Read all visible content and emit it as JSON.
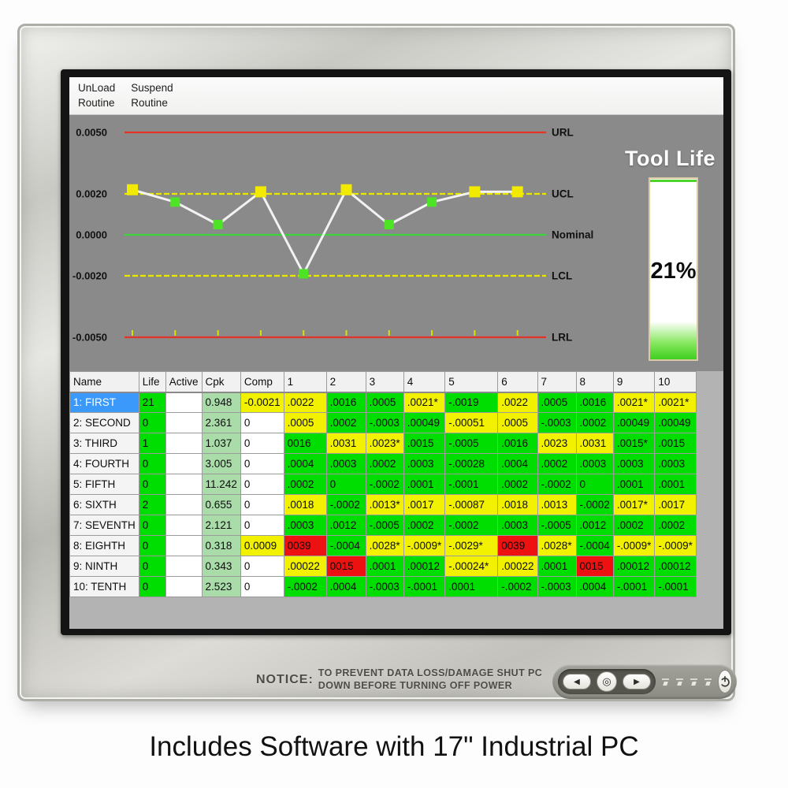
{
  "menu": {
    "items": [
      {
        "id": "unload-routine",
        "label": "UnLoad\nRoutine"
      },
      {
        "id": "suspend-routine",
        "label": "Suspend\nRoutine"
      }
    ]
  },
  "chart_data": {
    "type": "line",
    "title": "",
    "xlabel": "",
    "ylabel": "",
    "x": [
      1,
      2,
      3,
      4,
      5,
      6,
      7,
      8,
      9,
      10
    ],
    "series": [
      {
        "name": "1: FIRST",
        "values": [
          0.0022,
          0.0016,
          0.0005,
          0.0021,
          -0.0019,
          0.0022,
          0.0005,
          0.0016,
          0.0021,
          0.0021
        ],
        "marker": "square",
        "marker_colors": [
          "yellow",
          "green",
          "green",
          "yellow",
          "green",
          "yellow",
          "green",
          "green",
          "yellow",
          "yellow"
        ],
        "line_color": "#f2f2f2"
      }
    ],
    "control_lines": [
      {
        "label": "URL",
        "value": 0.005,
        "color": "#e2352a",
        "style": "solid"
      },
      {
        "label": "UCL",
        "value": 0.002,
        "color": "#e8e800",
        "style": "dashed"
      },
      {
        "label": "Nominal",
        "value": 0.0,
        "color": "#3bd43b",
        "style": "solid"
      },
      {
        "label": "LCL",
        "value": -0.002,
        "color": "#e8e800",
        "style": "dashed"
      },
      {
        "label": "LRL",
        "value": -0.005,
        "color": "#e2352a",
        "style": "solid"
      }
    ],
    "y_ticks": [
      {
        "label": "0.0050",
        "value": 0.005
      },
      {
        "label": "0.0020",
        "value": 0.002
      },
      {
        "label": "0.0000",
        "value": 0.0
      },
      {
        "label": "-0.0020",
        "value": -0.002
      },
      {
        "label": "-0.0050",
        "value": -0.005
      }
    ],
    "ylim": [
      -0.0063,
      0.0059
    ],
    "grid": false,
    "background": "#8a8a8a",
    "legend_position": "right"
  },
  "tool_life": {
    "title": "Tool Life",
    "percent": 21,
    "percent_label": "21%"
  },
  "table": {
    "headers": [
      "Name",
      "Life",
      "Active",
      "Cpk",
      "Comp",
      "1",
      "2",
      "3",
      "4",
      "5",
      "6",
      "7",
      "8",
      "9",
      "10"
    ],
    "rows": [
      {
        "name": "1: FIRST",
        "selected": true,
        "life": "21",
        "active": "",
        "cpk": "0.948",
        "comp": [
          "-0.0021",
          "y"
        ],
        "values": [
          [
            ".0022",
            "y"
          ],
          [
            ".0016",
            "g"
          ],
          [
            ".0005",
            "g"
          ],
          [
            ".0021*",
            "y"
          ],
          [
            "-.0019",
            "g"
          ],
          [
            ".0022",
            "y"
          ],
          [
            ".0005",
            "g"
          ],
          [
            ".0016",
            "g"
          ],
          [
            ".0021*",
            "y"
          ],
          [
            ".0021*",
            "y"
          ]
        ]
      },
      {
        "name": "2: SECOND",
        "selected": false,
        "life": "0",
        "active": "",
        "cpk": "2.361",
        "comp": [
          "0",
          "w"
        ],
        "values": [
          [
            ".0005",
            "y"
          ],
          [
            ".0002",
            "g"
          ],
          [
            "-.0003",
            "g"
          ],
          [
            ".00049",
            "g"
          ],
          [
            "-.00051",
            "y"
          ],
          [
            ".0005",
            "y"
          ],
          [
            "-.0003",
            "g"
          ],
          [
            ".0002",
            "g"
          ],
          [
            ".00049",
            "g"
          ],
          [
            ".00049",
            "g"
          ]
        ]
      },
      {
        "name": "3: THIRD",
        "selected": false,
        "life": "1",
        "active": "",
        "cpk": "1.037",
        "comp": [
          "0",
          "w"
        ],
        "values": [
          [
            "0016",
            "g"
          ],
          [
            ".0031",
            "y"
          ],
          [
            ".0023*",
            "y"
          ],
          [
            ".0015",
            "g"
          ],
          [
            "-.0005",
            "g"
          ],
          [
            ".0016",
            "g"
          ],
          [
            ".0023",
            "y"
          ],
          [
            ".0031",
            "y"
          ],
          [
            ".0015*",
            "g"
          ],
          [
            ".0015",
            "g"
          ]
        ]
      },
      {
        "name": "4: FOURTH",
        "selected": false,
        "life": "0",
        "active": "",
        "cpk": "3.005",
        "comp": [
          "0",
          "w"
        ],
        "values": [
          [
            ".0004",
            "g"
          ],
          [
            ".0003",
            "g"
          ],
          [
            ".0002",
            "g"
          ],
          [
            ".0003",
            "g"
          ],
          [
            "-.00028",
            "g"
          ],
          [
            ".0004",
            "g"
          ],
          [
            ".0002",
            "g"
          ],
          [
            ".0003",
            "g"
          ],
          [
            ".0003",
            "g"
          ],
          [
            ".0003",
            "g"
          ]
        ]
      },
      {
        "name": "5: FIFTH",
        "selected": false,
        "life": "0",
        "active": "",
        "cpk": "11.242",
        "comp": [
          "0",
          "w"
        ],
        "values": [
          [
            ".0002",
            "g"
          ],
          [
            "0",
            "g"
          ],
          [
            "-.0002",
            "g"
          ],
          [
            ".0001",
            "g"
          ],
          [
            "-.0001",
            "g"
          ],
          [
            ".0002",
            "g"
          ],
          [
            "-.0002",
            "g"
          ],
          [
            "0",
            "g"
          ],
          [
            ".0001",
            "g"
          ],
          [
            ".0001",
            "g"
          ]
        ]
      },
      {
        "name": "6: SIXTH",
        "selected": false,
        "life": "2",
        "active": "",
        "cpk": "0.655",
        "comp": [
          "0",
          "w"
        ],
        "values": [
          [
            ".0018",
            "y"
          ],
          [
            "-.0002",
            "g"
          ],
          [
            ".0013*",
            "y"
          ],
          [
            ".0017",
            "y"
          ],
          [
            "-.00087",
            "y"
          ],
          [
            ".0018",
            "y"
          ],
          [
            ".0013",
            "y"
          ],
          [
            "-.0002",
            "g"
          ],
          [
            ".0017*",
            "y"
          ],
          [
            ".0017",
            "y"
          ]
        ]
      },
      {
        "name": "7: SEVENTH",
        "selected": false,
        "life": "0",
        "active": "",
        "cpk": "2.121",
        "comp": [
          "0",
          "w"
        ],
        "values": [
          [
            ".0003",
            "g"
          ],
          [
            ".0012",
            "g"
          ],
          [
            "-.0005",
            "g"
          ],
          [
            ".0002",
            "g"
          ],
          [
            "-.0002",
            "g"
          ],
          [
            ".0003",
            "g"
          ],
          [
            "-.0005",
            "g"
          ],
          [
            ".0012",
            "g"
          ],
          [
            ".0002",
            "g"
          ],
          [
            ".0002",
            "g"
          ]
        ]
      },
      {
        "name": "8: EIGHTH",
        "selected": false,
        "life": "0",
        "active": "",
        "cpk": "0.318",
        "comp": [
          "0.0009",
          "y"
        ],
        "values": [
          [
            "0039",
            "r"
          ],
          [
            "-.0004",
            "g"
          ],
          [
            ".0028*",
            "y"
          ],
          [
            "-.0009*",
            "y"
          ],
          [
            "-.0029*",
            "y"
          ],
          [
            "0039",
            "r"
          ],
          [
            ".0028*",
            "y"
          ],
          [
            "-.0004",
            "g"
          ],
          [
            "-.0009*",
            "y"
          ],
          [
            "-.0009*",
            "y"
          ]
        ]
      },
      {
        "name": "9: NINTH",
        "selected": false,
        "life": "0",
        "active": "",
        "cpk": "0.343",
        "comp": [
          "0",
          "w"
        ],
        "values": [
          [
            ".00022",
            "y"
          ],
          [
            "0015",
            "r"
          ],
          [
            ".0001",
            "g"
          ],
          [
            ".00012",
            "g"
          ],
          [
            "-.00024*",
            "y"
          ],
          [
            ".00022",
            "y"
          ],
          [
            ".0001",
            "g"
          ],
          [
            "0015",
            "r"
          ],
          [
            ".00012",
            "g"
          ],
          [
            ".00012",
            "g"
          ]
        ]
      },
      {
        "name": "10: TENTH",
        "selected": false,
        "life": "0",
        "active": "",
        "cpk": "2.523",
        "comp": [
          "0",
          "w"
        ],
        "values": [
          [
            "-.0002",
            "g"
          ],
          [
            ".0004",
            "g"
          ],
          [
            "-.0003",
            "g"
          ],
          [
            "-.0001",
            "g"
          ],
          [
            ".0001",
            "g"
          ],
          [
            "-.0002",
            "g"
          ],
          [
            "-.0003",
            "g"
          ],
          [
            ".0004",
            "g"
          ],
          [
            "-.0001",
            "g"
          ],
          [
            "-.0001",
            "g"
          ]
        ]
      }
    ]
  },
  "bezel": {
    "notice_label": "NOTICE:",
    "notice_text": "TO PREVENT DATA LOSS/DAMAGE SHUT PC\nDOWN BEFORE TURNING OFF POWER",
    "led_count": 4
  },
  "caption": "Includes Software with 17\" Industrial PC",
  "colors": {
    "marker_yellow": "#f2ea00",
    "marker_green": "#4ce424",
    "cell_green": "#00dd00",
    "cell_yellow": "#f2f200",
    "cell_red": "#ee1111",
    "cpk_bg": "#a9dca9",
    "selected_row": "#3b99fc",
    "chart_bg": "#8a8a8a"
  }
}
